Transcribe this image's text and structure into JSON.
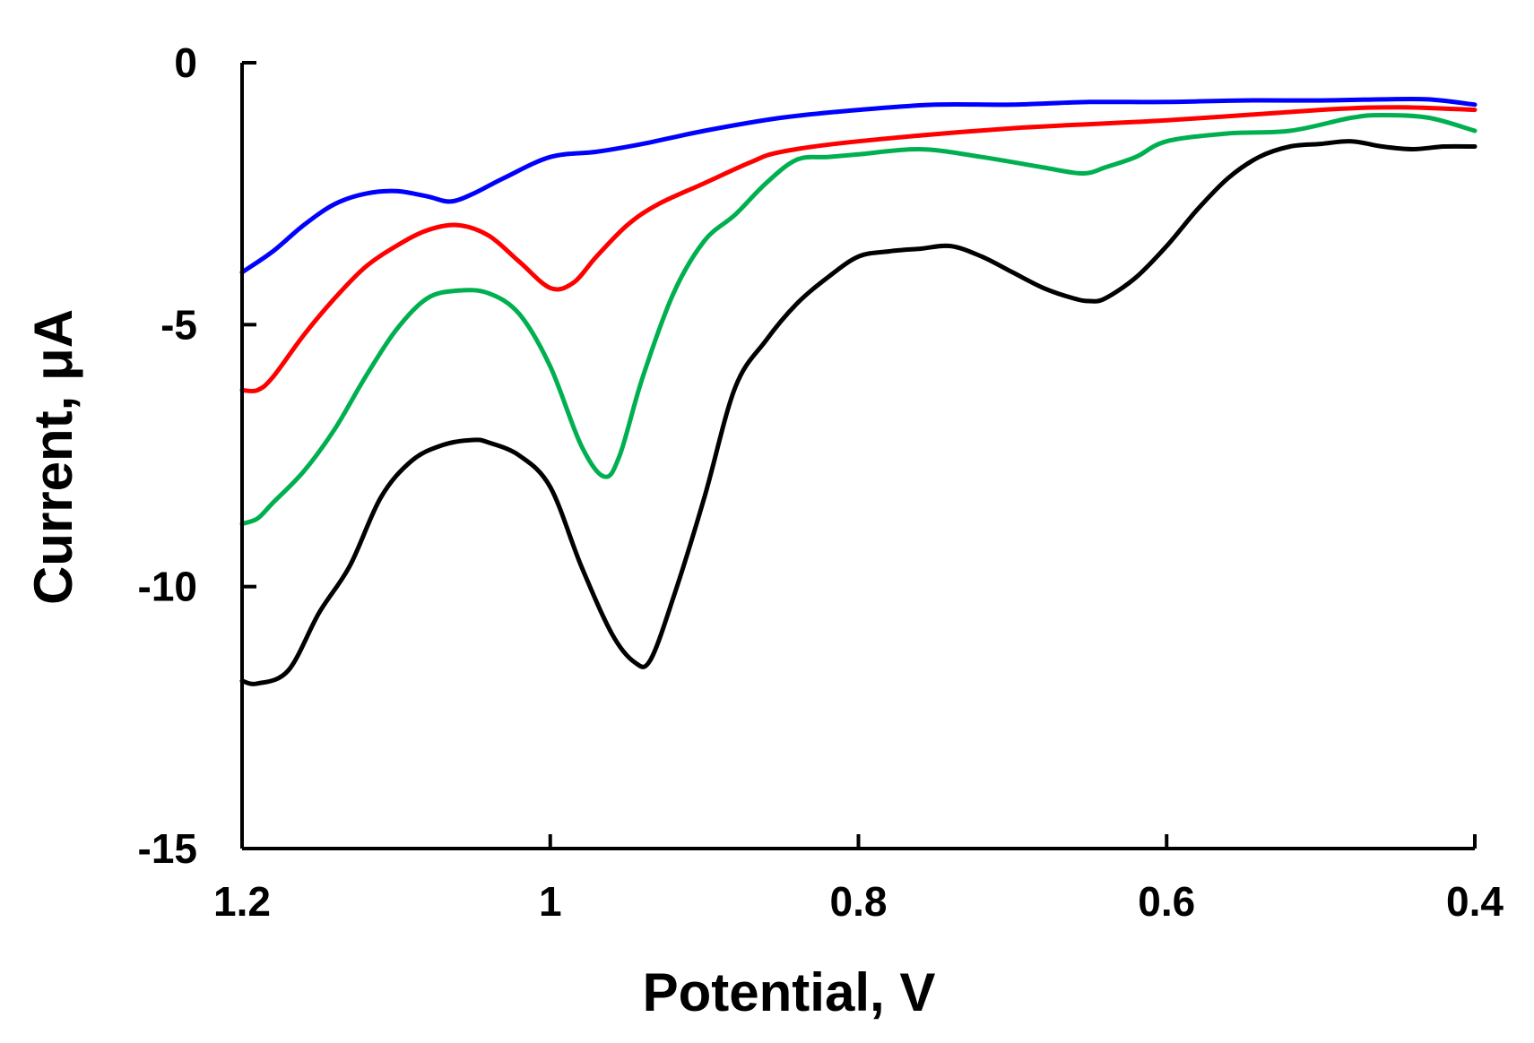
{
  "chart_data": {
    "type": "line",
    "title": "",
    "xlabel": "Potential, V",
    "ylabel": "Current, μA",
    "xlim": [
      1.2,
      0.4
    ],
    "ylim": [
      -15,
      0
    ],
    "x_reversed": true,
    "xticks": [
      1.2,
      1.0,
      0.8,
      0.6,
      0.4
    ],
    "xtick_labels": [
      "1.2",
      "1",
      "0.8",
      "0.6",
      "0.4"
    ],
    "yticks": [
      0,
      -5,
      -10,
      -15
    ],
    "ytick_labels": [
      "0",
      "-5",
      "-10",
      "-15"
    ],
    "grid": false,
    "legend": "none",
    "series": [
      {
        "name": "blue",
        "color": "#0000ff",
        "x": [
          1.2,
          1.18,
          1.16,
          1.14,
          1.12,
          1.1,
          1.08,
          1.065,
          1.05,
          1.03,
          1.0,
          0.97,
          0.94,
          0.9,
          0.85,
          0.8,
          0.75,
          0.7,
          0.65,
          0.6,
          0.55,
          0.5,
          0.46,
          0.43,
          0.4
        ],
        "y": [
          -4.0,
          -3.6,
          -3.1,
          -2.7,
          -2.5,
          -2.45,
          -2.55,
          -2.65,
          -2.5,
          -2.2,
          -1.8,
          -1.7,
          -1.55,
          -1.3,
          -1.05,
          -0.9,
          -0.8,
          -0.8,
          -0.75,
          -0.75,
          -0.72,
          -0.72,
          -0.7,
          -0.7,
          -0.8
        ]
      },
      {
        "name": "red",
        "color": "#ff0000",
        "x": [
          1.2,
          1.19,
          1.18,
          1.16,
          1.14,
          1.12,
          1.1,
          1.08,
          1.06,
          1.04,
          1.02,
          1.0,
          0.985,
          0.97,
          0.95,
          0.93,
          0.9,
          0.87,
          0.85,
          0.8,
          0.7,
          0.6,
          0.5,
          0.45,
          0.4
        ],
        "y": [
          -6.25,
          -6.25,
          -6.0,
          -5.2,
          -4.5,
          -3.9,
          -3.5,
          -3.2,
          -3.1,
          -3.3,
          -3.8,
          -4.3,
          -4.2,
          -3.7,
          -3.1,
          -2.7,
          -2.3,
          -1.9,
          -1.7,
          -1.5,
          -1.25,
          -1.1,
          -0.9,
          -0.85,
          -0.9
        ]
      },
      {
        "name": "green",
        "color": "#00b050",
        "x": [
          1.2,
          1.19,
          1.18,
          1.16,
          1.14,
          1.12,
          1.1,
          1.08,
          1.06,
          1.04,
          1.02,
          1.0,
          0.98,
          0.965,
          0.955,
          0.94,
          0.92,
          0.9,
          0.88,
          0.86,
          0.84,
          0.82,
          0.8,
          0.76,
          0.72,
          0.68,
          0.66,
          0.65,
          0.64,
          0.62,
          0.6,
          0.56,
          0.52,
          0.48,
          0.46,
          0.43,
          0.4
        ],
        "y": [
          -8.8,
          -8.7,
          -8.4,
          -7.8,
          -7.0,
          -6.0,
          -5.1,
          -4.5,
          -4.35,
          -4.4,
          -4.8,
          -5.8,
          -7.3,
          -7.9,
          -7.5,
          -6.0,
          -4.4,
          -3.4,
          -2.9,
          -2.3,
          -1.85,
          -1.8,
          -1.75,
          -1.65,
          -1.8,
          -2.0,
          -2.1,
          -2.1,
          -2.0,
          -1.8,
          -1.5,
          -1.35,
          -1.3,
          -1.05,
          -1.0,
          -1.05,
          -1.3
        ]
      },
      {
        "name": "black",
        "color": "#000000",
        "x": [
          1.2,
          1.19,
          1.17,
          1.15,
          1.13,
          1.11,
          1.09,
          1.07,
          1.05,
          1.04,
          1.02,
          1.0,
          0.98,
          0.96,
          0.945,
          0.935,
          0.92,
          0.9,
          0.88,
          0.86,
          0.84,
          0.82,
          0.8,
          0.78,
          0.76,
          0.74,
          0.72,
          0.7,
          0.68,
          0.66,
          0.65,
          0.64,
          0.62,
          0.6,
          0.58,
          0.56,
          0.54,
          0.52,
          0.5,
          0.48,
          0.46,
          0.44,
          0.42,
          0.4
        ],
        "y": [
          -11.8,
          -11.85,
          -11.6,
          -10.5,
          -9.6,
          -8.3,
          -7.6,
          -7.3,
          -7.2,
          -7.25,
          -7.5,
          -8.1,
          -9.6,
          -10.9,
          -11.45,
          -11.4,
          -10.2,
          -8.3,
          -6.2,
          -5.3,
          -4.6,
          -4.1,
          -3.7,
          -3.6,
          -3.55,
          -3.5,
          -3.7,
          -4.0,
          -4.3,
          -4.5,
          -4.55,
          -4.5,
          -4.1,
          -3.5,
          -2.8,
          -2.2,
          -1.8,
          -1.6,
          -1.55,
          -1.5,
          -1.6,
          -1.65,
          -1.6,
          -1.6
        ]
      }
    ]
  }
}
